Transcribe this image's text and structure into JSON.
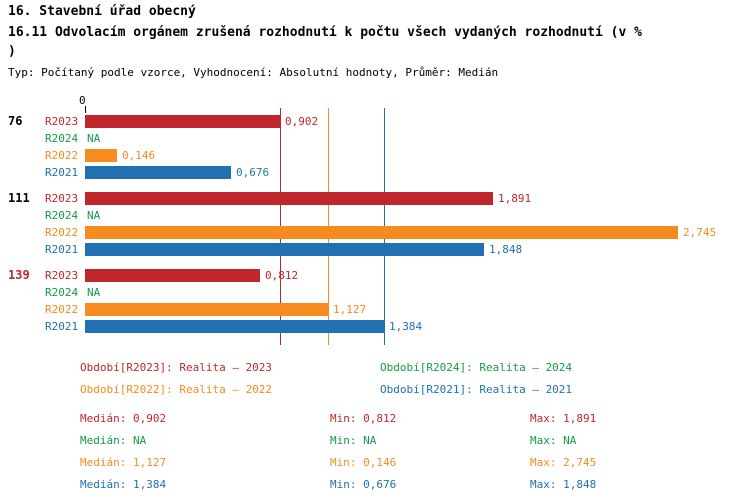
{
  "header": {
    "title": "16. Stavební úřad obecný",
    "subtitle": "16.11 Odvolacím orgánem zrušená rozhodnutí k počtu všech vydaných rozhodnutí (v %\n)",
    "meta": "Typ: Počítaný podle vzorce, Vyhodnocení: Absolutní hodnoty, Průměr: Medián"
  },
  "colors": {
    "R2023": "#c0272d",
    "R2024": "#169a48",
    "R2022": "#f68b1f",
    "R2021": "#2170b2"
  },
  "chart_data": {
    "type": "bar",
    "orientation": "horizontal",
    "title": "16.11 Odvolacím orgánem zrušená rozhodnutí k počtu všech vydaných rozhodnutí (v %)",
    "axis": {
      "min": 0,
      "max": 2.85,
      "origin_label": "0"
    },
    "series_order": [
      "R2023",
      "R2024",
      "R2022",
      "R2021"
    ],
    "groups": [
      {
        "label": "76",
        "label_color": "#000000",
        "bars": [
          {
            "series": "R2023",
            "value": 0.902,
            "display": "0,902"
          },
          {
            "series": "R2024",
            "value": null,
            "display": "NA"
          },
          {
            "series": "R2022",
            "value": 0.146,
            "display": "0,146"
          },
          {
            "series": "R2021",
            "value": 0.676,
            "display": "0,676"
          }
        ]
      },
      {
        "label": "111",
        "label_color": "#000000",
        "bars": [
          {
            "series": "R2023",
            "value": 1.891,
            "display": "1,891"
          },
          {
            "series": "R2024",
            "value": null,
            "display": "NA"
          },
          {
            "series": "R2022",
            "value": 2.745,
            "display": "2,745"
          },
          {
            "series": "R2021",
            "value": 1.848,
            "display": "1,848"
          }
        ]
      },
      {
        "label": "139",
        "label_color": "#c0272d",
        "bars": [
          {
            "series": "R2023",
            "value": 0.812,
            "display": "0,812"
          },
          {
            "series": "R2024",
            "value": null,
            "display": "NA"
          },
          {
            "series": "R2022",
            "value": 1.127,
            "display": "1,127"
          },
          {
            "series": "R2021",
            "value": 1.384,
            "display": "1,384"
          }
        ]
      }
    ],
    "median_lines": [
      {
        "series": "R2023",
        "value": 0.902
      },
      {
        "series": "R2022",
        "value": 1.127
      },
      {
        "series": "R2021",
        "value": 1.384
      }
    ]
  },
  "legend": [
    {
      "series": "R2023",
      "label": "Období[R2023]: Realita – 2023"
    },
    {
      "series": "R2024",
      "label": "Období[R2024]: Realita – 2024"
    },
    {
      "series": "R2022",
      "label": "Období[R2022]: Realita – 2022"
    },
    {
      "series": "R2021",
      "label": "Období[R2021]: Realita – 2021"
    }
  ],
  "stats_labels": {
    "median": "Medián",
    "min": "Min",
    "max": "Max"
  },
  "stats": [
    {
      "series": "R2023",
      "median": "0,902",
      "min": "0,812",
      "max": "1,891"
    },
    {
      "series": "R2024",
      "median": "NA",
      "min": "NA",
      "max": "NA"
    },
    {
      "series": "R2022",
      "median": "1,127",
      "min": "0,146",
      "max": "2,745"
    },
    {
      "series": "R2021",
      "median": "1,384",
      "min": "0,676",
      "max": "1,848"
    }
  ]
}
